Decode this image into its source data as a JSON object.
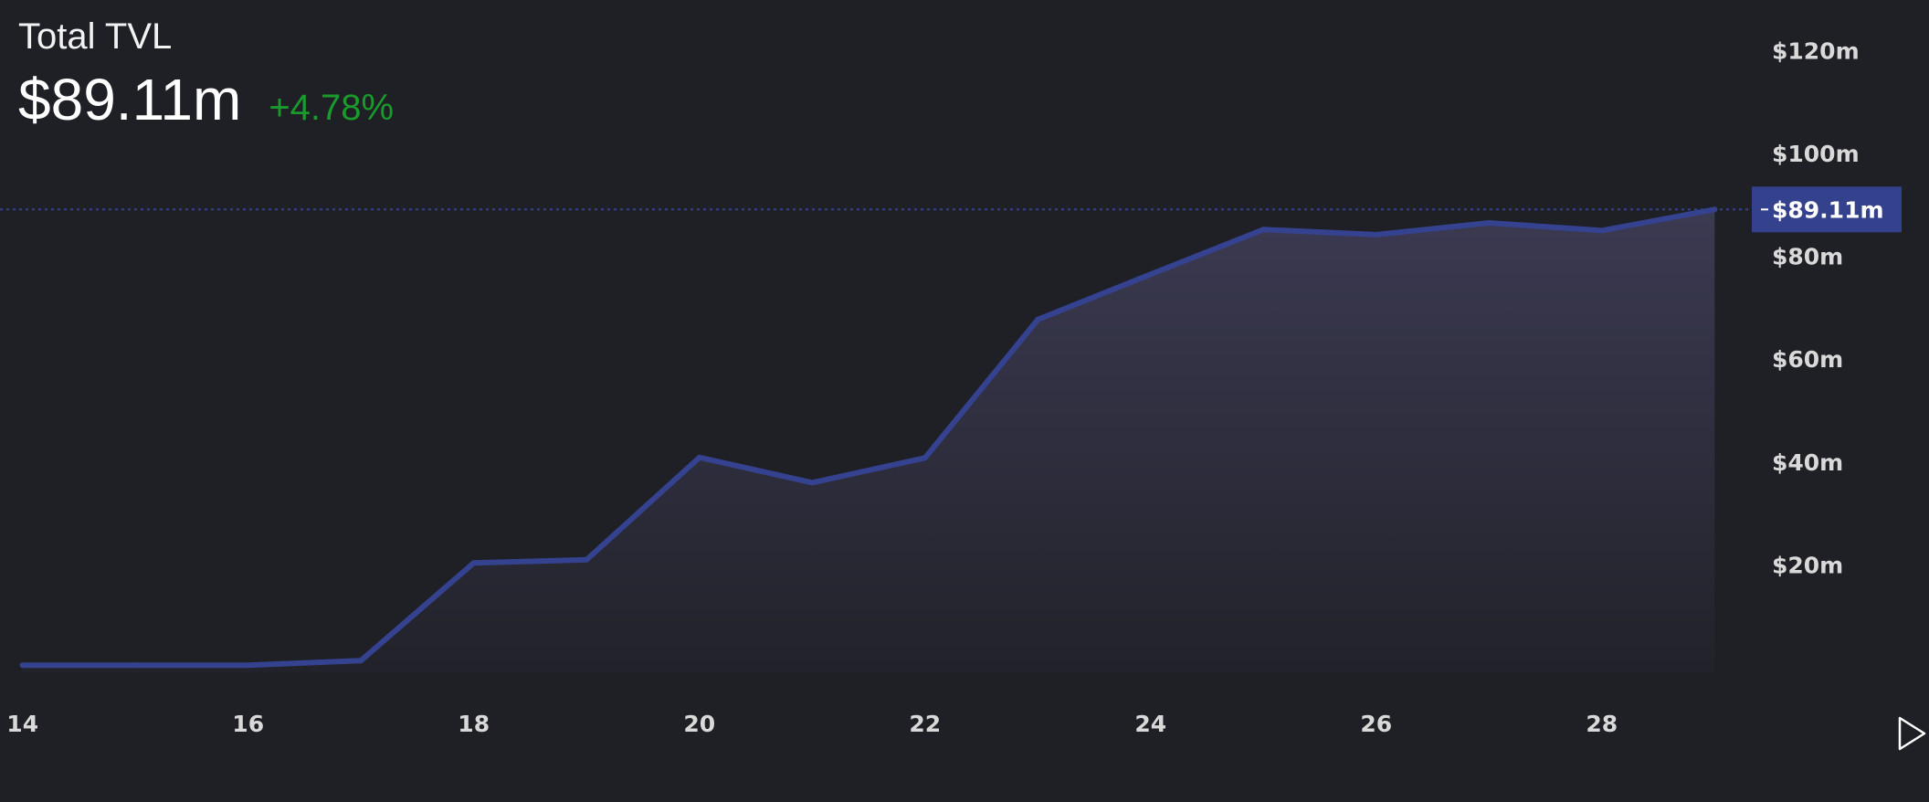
{
  "header": {
    "title": "Total TVL",
    "value": "$89.11m",
    "change": "+4.78%"
  },
  "colors": {
    "background": "#1f2026",
    "line": "#35428f",
    "fill_top": "#3b3a52",
    "fill_bottom": "#22222a",
    "last_price_label_bg": "#34418c",
    "change_positive": "#1a9a2a",
    "tick_text": "#d9d9d9"
  },
  "icons": {
    "scroll_right": "play-triangle-outline-icon"
  },
  "chart_data": {
    "type": "area",
    "title": "Total TVL",
    "x": [
      14,
      15,
      16,
      17,
      18,
      19,
      20,
      21,
      22,
      23,
      24,
      25,
      26,
      27,
      28,
      29
    ],
    "values": [
      0.5,
      0.5,
      0.5,
      1.4,
      20.4,
      21.0,
      40.9,
      36.0,
      40.8,
      67.7,
      76.5,
      85.2,
      84.2,
      86.5,
      85.0,
      89.11
    ],
    "xticks": [
      "14",
      "16",
      "18",
      "20",
      "22",
      "24",
      "26",
      "28"
    ],
    "xtick_values": [
      14,
      16,
      18,
      20,
      22,
      24,
      26,
      28
    ],
    "yticks": [
      "$20m",
      "$40m",
      "$60m",
      "$80m",
      "$100m",
      "$120m"
    ],
    "ytick_values": [
      20,
      40,
      60,
      80,
      100,
      120
    ],
    "last_value_label": "$89.11m",
    "last_value": 89.11,
    "xlim": [
      13.8,
      30.9
    ],
    "ylim": [
      -3,
      126
    ],
    "grid": false,
    "xlabel": "",
    "ylabel": ""
  }
}
